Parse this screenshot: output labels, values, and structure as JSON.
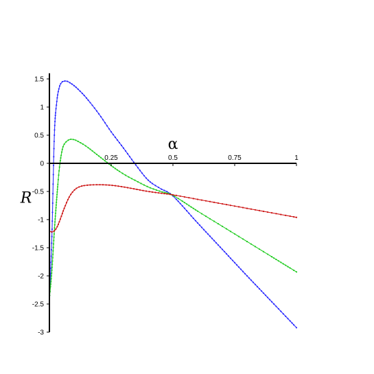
{
  "chart_data": {
    "type": "line",
    "xlabel": "α",
    "ylabel": "R",
    "xlim": [
      0,
      1
    ],
    "ylim": [
      -3,
      1.6
    ],
    "x_ticks": [
      {
        "value": 0.25,
        "label": "0.25"
      },
      {
        "value": 0.5,
        "label": "0.5"
      },
      {
        "value": 0.75,
        "label": "0.75"
      },
      {
        "value": 1,
        "label": "1"
      }
    ],
    "y_ticks": [
      {
        "value": 1.5,
        "label": "1.5"
      },
      {
        "value": 1,
        "label": "1"
      },
      {
        "value": 0.5,
        "label": "0.5"
      },
      {
        "value": 0,
        "label": "0"
      },
      {
        "value": -0.5,
        "label": "-0.5"
      },
      {
        "value": -1,
        "label": "-1"
      },
      {
        "value": -1.5,
        "label": "-1.5"
      },
      {
        "value": -2,
        "label": "-2"
      },
      {
        "value": -2.5,
        "label": "-2.5"
      },
      {
        "value": -3,
        "label": "-3"
      }
    ],
    "grid": false,
    "legend": "none",
    "marker": "small dots",
    "series": [
      {
        "color": "#2a2aff",
        "x": [
          0,
          0.01,
          0.02,
          0.03,
          0.04,
          0.05,
          0.06,
          0.07,
          0.08,
          0.1,
          0.12,
          0.15,
          0.2,
          0.25,
          0.3,
          0.35,
          0.4,
          0.45,
          0.5,
          0.6,
          0.7,
          0.8,
          0.9,
          1.0
        ],
        "y": [
          -2.4,
          -1.3,
          0.5,
          1.1,
          1.35,
          1.44,
          1.46,
          1.46,
          1.44,
          1.38,
          1.3,
          1.16,
          0.88,
          0.56,
          0.27,
          -0.03,
          -0.3,
          -0.45,
          -0.58,
          -1.06,
          -1.53,
          -2.0,
          -2.46,
          -2.92
        ]
      },
      {
        "color": "#22cc22",
        "x": [
          0,
          0.01,
          0.02,
          0.03,
          0.04,
          0.05,
          0.06,
          0.08,
          0.1,
          0.12,
          0.15,
          0.2,
          0.25,
          0.3,
          0.35,
          0.4,
          0.45,
          0.5,
          0.6,
          0.7,
          0.8,
          0.9,
          1.0
        ],
        "y": [
          -2.4,
          -1.9,
          -1.2,
          -0.6,
          -0.1,
          0.2,
          0.34,
          0.42,
          0.42,
          0.38,
          0.3,
          0.13,
          -0.04,
          -0.19,
          -0.31,
          -0.42,
          -0.5,
          -0.57,
          -0.85,
          -1.12,
          -1.39,
          -1.66,
          -1.93
        ]
      },
      {
        "color": "#cc1111",
        "x": [
          0,
          0.01,
          0.02,
          0.03,
          0.04,
          0.05,
          0.06,
          0.08,
          0.1,
          0.12,
          0.15,
          0.2,
          0.25,
          0.3,
          0.35,
          0.4,
          0.45,
          0.5,
          0.6,
          0.7,
          0.8,
          0.9,
          1.0
        ],
        "y": [
          -1.2,
          -1.22,
          -1.2,
          -1.14,
          -1.04,
          -0.92,
          -0.8,
          -0.6,
          -0.48,
          -0.42,
          -0.39,
          -0.38,
          -0.39,
          -0.42,
          -0.46,
          -0.5,
          -0.53,
          -0.56,
          -0.64,
          -0.72,
          -0.8,
          -0.88,
          -0.96
        ]
      }
    ]
  }
}
